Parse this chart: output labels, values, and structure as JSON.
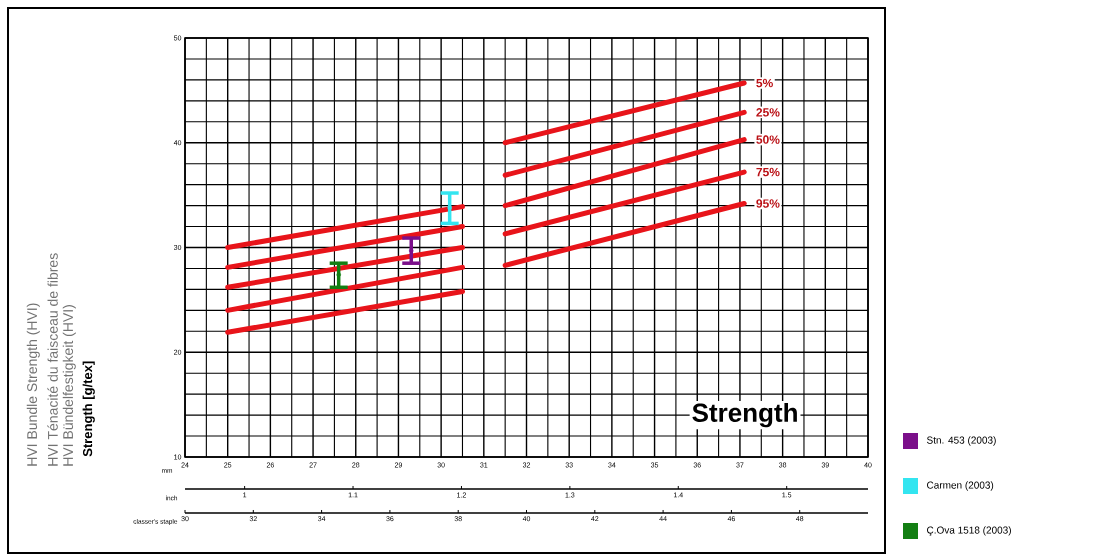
{
  "chart_data": {
    "type": "line",
    "title": "Strength",
    "xlabel": "mm",
    "annotations": [
      "HVI Bundle Strength (HVI)",
      "HVI Ténacité du faisceau de fibres",
      "HVI Bündelfestigkeit (HVI)",
      "Strength [g/tex]",
      "classer's staple",
      "30",
      "32",
      "34",
      "36",
      "38",
      "40",
      "42",
      "44",
      "46",
      "48"
    ],
    "xlim": [
      24,
      40
    ],
    "xticks": [
      24,
      25,
      26,
      27,
      28,
      29,
      30,
      31,
      32,
      33,
      34,
      35,
      36,
      37,
      38,
      39,
      40
    ],
    "ylim": [
      10,
      50
    ],
    "yticks": [
      10,
      20,
      30,
      40,
      50
    ],
    "x2label": "inch",
    "x2lim": [
      0.945,
      1.575
    ],
    "x2ticks": [
      1,
      1.1,
      1.2,
      1.3,
      1.4,
      1.5
    ],
    "grid": true,
    "legend": "right",
    "series": [
      {
        "name": "5%",
        "color": "#e8141a",
        "x": [
          25,
          30.5,
          31,
          31.5,
          37.1
        ],
        "values": [
          30,
          33.9,
          null,
          40,
          45.7
        ]
      },
      {
        "name": "25%",
        "color": "#e8141a",
        "x": [
          25,
          30.5,
          31,
          31.5,
          37.1
        ],
        "values": [
          28.1,
          32,
          null,
          36.9,
          42.9
        ]
      },
      {
        "name": "50%",
        "color": "#e8141a",
        "x": [
          25,
          30.5,
          31,
          31.5,
          37.1
        ],
        "values": [
          26.2,
          30,
          null,
          34,
          40.3
        ]
      },
      {
        "name": "75%",
        "color": "#e8141a",
        "x": [
          25,
          30.5,
          31,
          31.5,
          37.1
        ],
        "values": [
          24,
          28.1,
          null,
          31.3,
          37.2
        ]
      },
      {
        "name": "95%",
        "color": "#e8141a",
        "x": [
          25,
          30.5,
          31,
          31.5,
          37.1
        ],
        "values": [
          21.9,
          25.8,
          null,
          28.3,
          34.2
        ]
      },
      {
        "name": "Stn. 453 (2003)",
        "type": "scatter",
        "color": "#7b0f8a",
        "x": [
          29.3
        ],
        "values": [
          29.7
        ],
        "errors": [
          [
            28.5,
            30.9
          ]
        ]
      },
      {
        "name": "Carmen (2003)",
        "type": "scatter",
        "color": "#33e5f0",
        "x": [
          30.2
        ],
        "values": [
          33.8
        ],
        "errors": [
          [
            32.3,
            35.2
          ]
        ]
      },
      {
        "name": "Ç.Ova 1518 (2003)",
        "type": "scatter",
        "color": "#137f13",
        "x": [
          27.6
        ],
        "values": [
          27.4
        ],
        "errors": [
          [
            26.2,
            28.5
          ]
        ]
      }
    ]
  }
}
